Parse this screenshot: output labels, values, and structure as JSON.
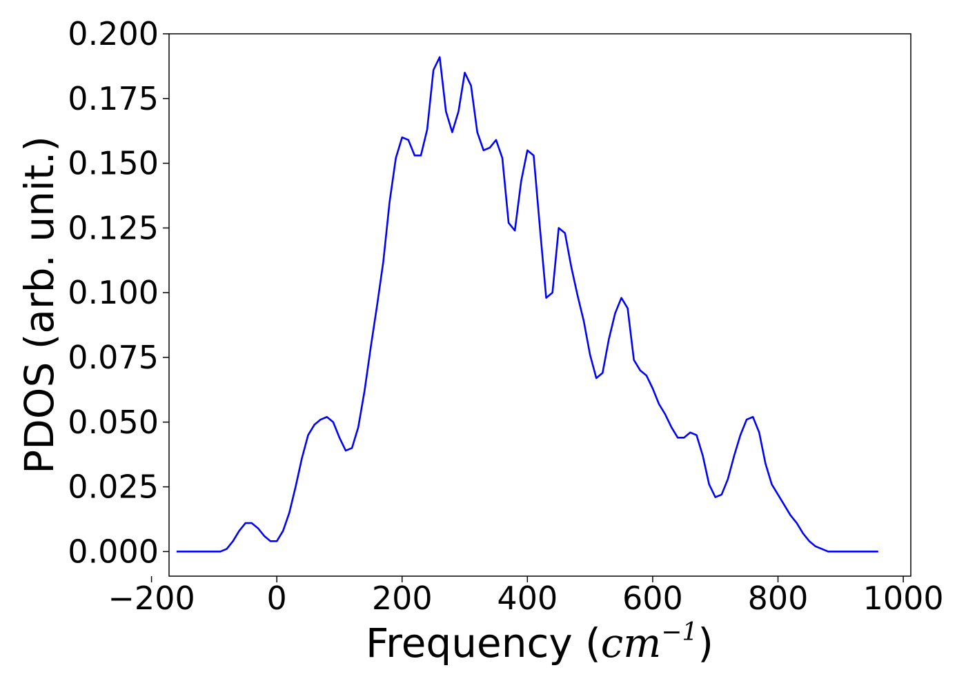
{
  "chart_data": {
    "type": "line",
    "title": "",
    "xlabel": "Frequency ",
    "xlabel_math": "cm",
    "xlabel_superscript": "−1",
    "ylabel": "PDOS (arb. unit.)",
    "xlim": [
      -172,
      1012
    ],
    "ylim": [
      -0.0095,
      0.2
    ],
    "x_ticks": [
      -200,
      0,
      200,
      400,
      600,
      800,
      1000
    ],
    "x_tick_labels": [
      "−200",
      "0",
      "200",
      "400",
      "600",
      "800",
      "1000"
    ],
    "y_ticks": [
      0.0,
      0.025,
      0.05,
      0.075,
      0.1,
      0.125,
      0.15,
      0.175,
      0.2
    ],
    "y_tick_labels": [
      "0.000",
      "0.025",
      "0.050",
      "0.075",
      "0.100",
      "0.125",
      "0.150",
      "0.175",
      "0.200"
    ],
    "grid": false,
    "legend": "none",
    "series": [
      {
        "color": "#0000ff",
        "x": [
          -160,
          -90,
          -80,
          -70,
          -60,
          -50,
          -40,
          -30,
          -20,
          -10,
          0,
          10,
          20,
          30,
          40,
          50,
          60,
          70,
          80,
          90,
          100,
          110,
          120,
          130,
          140,
          150,
          160,
          170,
          180,
          190,
          200,
          210,
          220,
          230,
          240,
          250,
          260,
          270,
          280,
          290,
          300,
          310,
          320,
          330,
          340,
          350,
          360,
          370,
          380,
          390,
          400,
          410,
          420,
          430,
          440,
          450,
          460,
          470,
          480,
          490,
          500,
          510,
          520,
          530,
          540,
          550,
          560,
          570,
          580,
          590,
          600,
          610,
          620,
          630,
          640,
          650,
          660,
          670,
          680,
          690,
          700,
          710,
          720,
          730,
          740,
          750,
          760,
          770,
          780,
          790,
          800,
          810,
          820,
          830,
          840,
          850,
          860,
          870,
          880,
          890,
          900,
          960
        ],
        "y": [
          0.0,
          0.0,
          0.001,
          0.004,
          0.008,
          0.011,
          0.011,
          0.009,
          0.006,
          0.004,
          0.004,
          0.008,
          0.015,
          0.025,
          0.036,
          0.045,
          0.049,
          0.051,
          0.052,
          0.05,
          0.044,
          0.039,
          0.04,
          0.048,
          0.062,
          0.079,
          0.095,
          0.112,
          0.135,
          0.152,
          0.16,
          0.159,
          0.153,
          0.153,
          0.163,
          0.186,
          0.191,
          0.17,
          0.162,
          0.17,
          0.185,
          0.18,
          0.162,
          0.155,
          0.156,
          0.159,
          0.152,
          0.127,
          0.124,
          0.143,
          0.155,
          0.153,
          0.125,
          0.098,
          0.1,
          0.125,
          0.123,
          0.11,
          0.099,
          0.089,
          0.076,
          0.067,
          0.069,
          0.082,
          0.092,
          0.098,
          0.094,
          0.074,
          0.07,
          0.068,
          0.063,
          0.057,
          0.053,
          0.048,
          0.044,
          0.044,
          0.046,
          0.045,
          0.037,
          0.026,
          0.021,
          0.022,
          0.028,
          0.037,
          0.045,
          0.051,
          0.052,
          0.046,
          0.034,
          0.026,
          0.022,
          0.018,
          0.014,
          0.011,
          0.007,
          0.004,
          0.002,
          0.001,
          0.0,
          0.0,
          0.0,
          0.0
        ]
      }
    ]
  }
}
